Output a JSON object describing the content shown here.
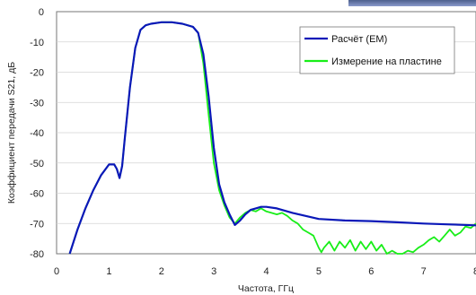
{
  "chart_data": {
    "type": "line",
    "xlabel": "Частота, ГГц",
    "ylabel": "Коэффициент передачи S21, дБ",
    "xlim": [
      0,
      8
    ],
    "ylim": [
      -80,
      0
    ],
    "x_ticks": [
      "0",
      "1",
      "2",
      "3",
      "4",
      "5",
      "6",
      "7",
      "8"
    ],
    "y_ticks": [
      "0",
      "-10",
      "-20",
      "-30",
      "-40",
      "-50",
      "-60",
      "-70",
      "-80"
    ],
    "grid": true,
    "legend_position": "top-right",
    "series": [
      {
        "name": "Расчёт (EM)",
        "color": "#0a18b8",
        "x": [
          0.25,
          0.4,
          0.55,
          0.7,
          0.85,
          1.0,
          1.1,
          1.15,
          1.2,
          1.25,
          1.3,
          1.4,
          1.5,
          1.6,
          1.7,
          1.8,
          2.0,
          2.2,
          2.4,
          2.6,
          2.7,
          2.8,
          2.9,
          3.0,
          3.1,
          3.2,
          3.3,
          3.4,
          3.5,
          3.6,
          3.7,
          3.8,
          3.9,
          4.0,
          4.2,
          4.5,
          5.0,
          5.5,
          6.0,
          6.5,
          7.0,
          7.5,
          8.0
        ],
        "y": [
          -80,
          -72,
          -65,
          -59,
          -54,
          -50.5,
          -50.5,
          -52,
          -55,
          -51,
          -42,
          -25,
          -12,
          -6,
          -4.5,
          -4,
          -3.5,
          -3.5,
          -4,
          -5,
          -7,
          -14,
          -28,
          -45,
          -57,
          -63,
          -67,
          -70.5,
          -69,
          -67,
          -65.5,
          -65,
          -64.5,
          -64.5,
          -65,
          -66.5,
          -68.5,
          -69,
          -69.2,
          -69.6,
          -70,
          -70.3,
          -70.6
        ]
      },
      {
        "name": "Измерение на пластине",
        "color": "#18ee18",
        "x": [
          0.25,
          0.4,
          0.55,
          0.7,
          0.85,
          1.0,
          1.1,
          1.15,
          1.2,
          1.25,
          1.3,
          1.4,
          1.5,
          1.6,
          1.7,
          1.8,
          2.0,
          2.2,
          2.4,
          2.6,
          2.7,
          2.8,
          2.9,
          3.0,
          3.1,
          3.2,
          3.3,
          3.4,
          3.5,
          3.6,
          3.7,
          3.8,
          3.9,
          4.0,
          4.1,
          4.2,
          4.3,
          4.4,
          4.5,
          4.6,
          4.7,
          4.8,
          4.9,
          5.0,
          5.05,
          5.1,
          5.2,
          5.3,
          5.4,
          5.5,
          5.6,
          5.7,
          5.8,
          5.9,
          6.0,
          6.1,
          6.2,
          6.3,
          6.4,
          6.5,
          6.6,
          6.7,
          6.8,
          6.9,
          7.0,
          7.1,
          7.2,
          7.3,
          7.4,
          7.5,
          7.6,
          7.7,
          7.8,
          7.9,
          8.0
        ],
        "y": [
          -80,
          -72,
          -65,
          -59,
          -54,
          -50.5,
          -50.5,
          -52,
          -55,
          -51,
          -42,
          -25,
          -12,
          -6,
          -4.5,
          -4,
          -3.5,
          -3.5,
          -4,
          -5,
          -7,
          -17,
          -34,
          -50,
          -59,
          -64,
          -68,
          -70,
          -68,
          -66.5,
          -65.5,
          -66,
          -65,
          -66,
          -66.5,
          -67,
          -66.5,
          -67.5,
          -69,
          -70,
          -72,
          -73,
          -74,
          -78,
          -79.5,
          -78,
          -76,
          -79,
          -76,
          -78,
          -75.5,
          -79,
          -76,
          -78.5,
          -76,
          -79,
          -77,
          -80,
          -79,
          -80,
          -80,
          -79,
          -79.5,
          -78,
          -77,
          -75.5,
          -74.5,
          -76,
          -74,
          -72,
          -74,
          -73,
          -71,
          -71.5,
          -70
        ]
      }
    ]
  }
}
